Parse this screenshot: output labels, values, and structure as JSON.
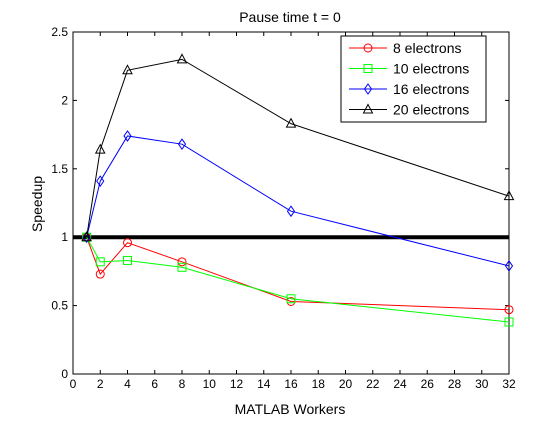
{
  "chart_data": {
    "type": "line",
    "title": "Pause time t = 0",
    "xlabel": "MATLAB Workers",
    "ylabel": "Speedup",
    "xlim": [
      0,
      32
    ],
    "ylim": [
      0,
      2.5
    ],
    "xticks": [
      0,
      2,
      4,
      6,
      8,
      10,
      12,
      14,
      16,
      18,
      20,
      22,
      24,
      26,
      28,
      30,
      32
    ],
    "xtick_labels": [
      "0",
      "2",
      "4",
      "6",
      "8",
      "10",
      "12",
      "14",
      "16",
      "18",
      "20",
      "22",
      "24",
      "26",
      "28",
      "30",
      "32"
    ],
    "yticks": [
      0,
      0.5,
      1,
      1.5,
      2,
      2.5
    ],
    "ytick_labels": [
      "0",
      "0.5",
      "1",
      "1.5",
      "2",
      "2.5"
    ],
    "grid": false,
    "legend_position": "top-right",
    "reference_line": {
      "y": 1,
      "color": "#000000"
    },
    "x": [
      1,
      2,
      4,
      8,
      16,
      32
    ],
    "series": [
      {
        "name": "8 electrons",
        "color": "#ff0000",
        "marker": "circle",
        "values": [
          1.0,
          0.73,
          0.96,
          0.82,
          0.53,
          0.47
        ]
      },
      {
        "name": "10 electrons",
        "color": "#00ff00",
        "marker": "square",
        "values": [
          1.0,
          0.82,
          0.83,
          0.78,
          0.55,
          0.38
        ]
      },
      {
        "name": "16 electrons",
        "color": "#0000ff",
        "marker": "diamond",
        "values": [
          1.0,
          1.41,
          1.74,
          1.68,
          1.19,
          0.79
        ]
      },
      {
        "name": "20 electrons",
        "color": "#000000",
        "marker": "triangle",
        "values": [
          1.0,
          1.64,
          2.22,
          2.3,
          1.83,
          1.3
        ]
      }
    ]
  }
}
